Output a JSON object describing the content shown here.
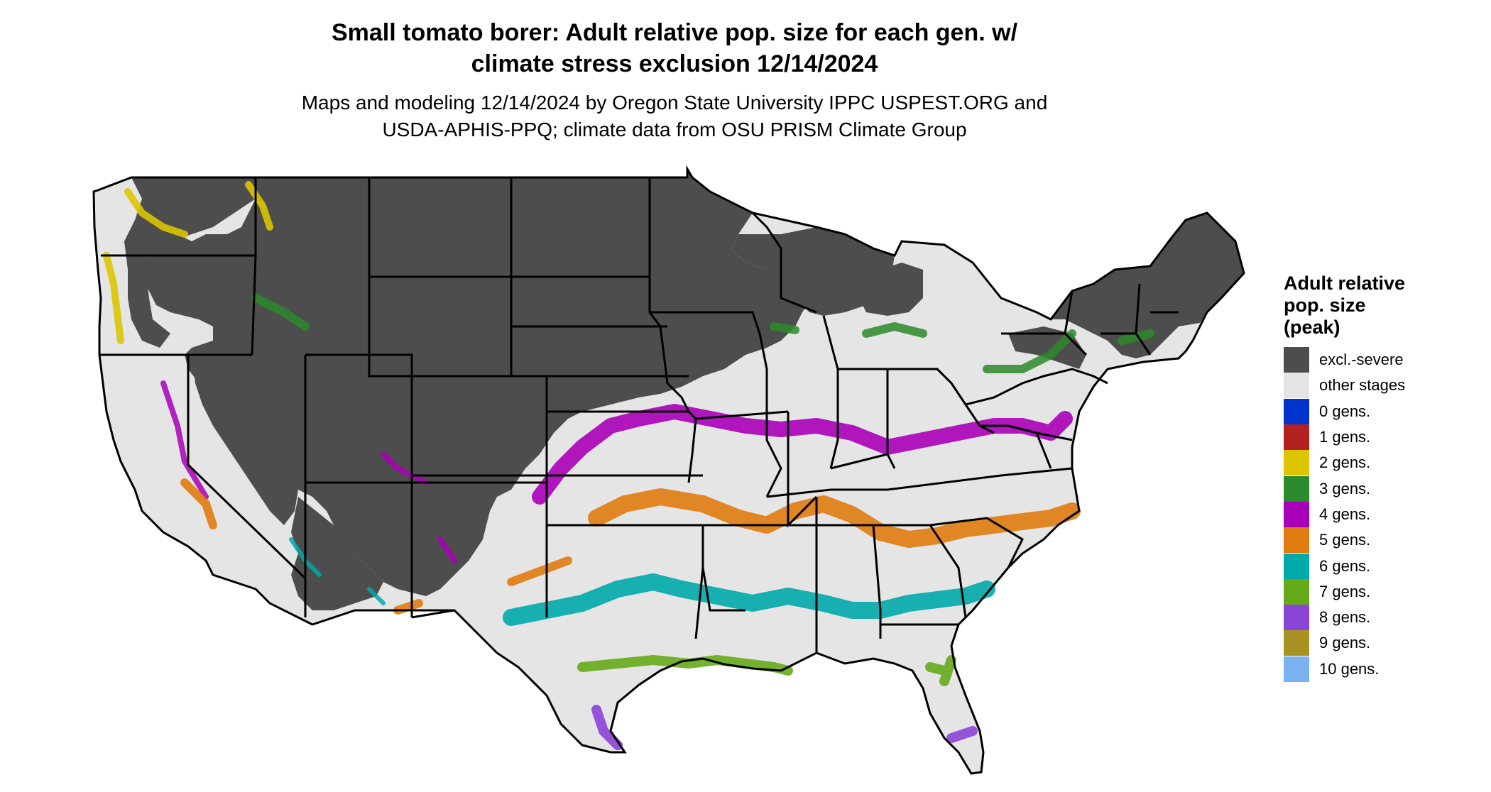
{
  "title_line1": "Small tomato borer: Adult relative pop. size for each gen. w/",
  "title_line2": "climate stress exclusion 12/14/2024",
  "subtitle_line1": "Maps and modeling 12/14/2024 by Oregon State University IPPC USPEST.ORG and",
  "subtitle_line2": "USDA-APHIS-PPQ; climate data from OSU PRISM Climate Group",
  "legend": {
    "title_line1": "Adult relative",
    "title_line2": "pop. size",
    "title_line3": "(peak)",
    "items": [
      {
        "label": "excl.-severe",
        "color": "#4d4d4d"
      },
      {
        "label": "other stages",
        "color": "#e5e5e5"
      },
      {
        "label": "0 gens.",
        "color": "#0033cc"
      },
      {
        "label": "1 gens.",
        "color": "#b22222"
      },
      {
        "label": "2 gens.",
        "color": "#dcc500"
      },
      {
        "label": "3 gens.",
        "color": "#2b8a2b"
      },
      {
        "label": "4 gens.",
        "color": "#a800b8"
      },
      {
        "label": "5 gens.",
        "color": "#e07b10"
      },
      {
        "label": "6 gens.",
        "color": "#00a9aa"
      },
      {
        "label": "7 gens.",
        "color": "#66aa1a"
      },
      {
        "label": "8 gens.",
        "color": "#8a44d8"
      },
      {
        "label": "9 gens.",
        "color": "#a89224"
      },
      {
        "label": "10 gens.",
        "color": "#7ab2f0"
      }
    ]
  },
  "colors": {
    "excluded": "#4d4d4d",
    "other": "#e5e5e5",
    "border": "#000000"
  }
}
